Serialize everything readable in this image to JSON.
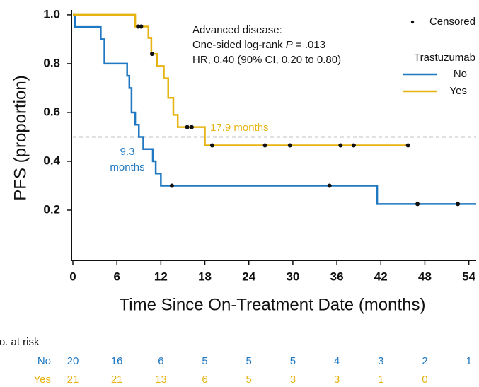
{
  "chart_data": {
    "type": "step",
    "xlabel": "Time Since On-Treatment Date (months)",
    "ylabel": "PFS (proportion)",
    "xlim": [
      0,
      55
    ],
    "ylim": [
      0,
      1.02
    ],
    "xticks": [
      0,
      6,
      12,
      18,
      24,
      30,
      36,
      42,
      48,
      54
    ],
    "yticks": [
      {
        "value": 0.2,
        "label": "0.2"
      },
      {
        "value": 0.4,
        "label": "0.4"
      },
      {
        "value": 0.6,
        "label": "0.6"
      },
      {
        "value": 0.8,
        "label": "0.8"
      },
      {
        "value": 1.0,
        "label": "1.0"
      }
    ],
    "median_line": 0.5,
    "censored_label": "Censored",
    "legend_title": "Trastuzumab",
    "annotation": [
      "Advanced disease:",
      [
        "One-sided log-rank ",
        "P",
        " = .013"
      ],
      "HR, 0.40 (90% CI, 0.20 to 0.80)"
    ],
    "series": [
      {
        "name": "No",
        "color": "#1f78c1",
        "x": [
          0,
          0.3,
          3.8,
          4.3,
          7.4,
          7.7,
          8.0,
          8.5,
          9.0,
          9.6,
          10.9,
          11.3,
          12.0,
          41.5,
          55
        ],
        "values": [
          1.0,
          0.95,
          0.9,
          0.8,
          0.75,
          0.7,
          0.6,
          0.55,
          0.5,
          0.45,
          0.4,
          0.35,
          0.3,
          0.225,
          0.225
        ],
        "censored_x": [
          13.5,
          35,
          47,
          52.5
        ],
        "censored_values": [
          0.3,
          0.3,
          0.225,
          0.225
        ],
        "median_label": [
          "9.3",
          "months"
        ],
        "at_risk": [
          20,
          16,
          6,
          5,
          5,
          5,
          4,
          3,
          2,
          1
        ]
      },
      {
        "name": "Yes",
        "color": "#e6b412",
        "x": [
          0,
          8.5,
          10.3,
          10.7,
          11.5,
          12.4,
          13.0,
          13.7,
          14.3,
          18.0,
          45.7
        ],
        "values": [
          1.0,
          0.952,
          0.905,
          0.84,
          0.79,
          0.74,
          0.66,
          0.59,
          0.54,
          0.465,
          0.465
        ],
        "censored_x": [
          8.9,
          9.3,
          10.8,
          15.6,
          16.2,
          19.0,
          26.2,
          29.6,
          36.5,
          38.3,
          45.7
        ],
        "censored_values": [
          0.952,
          0.952,
          0.84,
          0.54,
          0.54,
          0.465,
          0.465,
          0.465,
          0.465,
          0.465,
          0.465
        ],
        "median_label": [
          "17.9 months"
        ],
        "at_risk": [
          21,
          21,
          13,
          6,
          5,
          3,
          3,
          1,
          0
        ]
      }
    ],
    "at_risk_title": "No. at risk"
  }
}
